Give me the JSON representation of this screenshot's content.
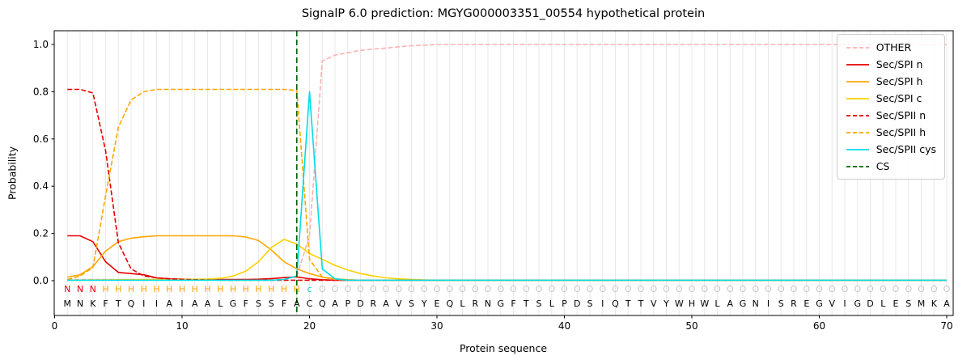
{
  "chart_data": {
    "type": "line",
    "title": "SignalP 6.0 prediction: MGYG000003351_00554 hypothetical protein",
    "xlabel": "Protein sequence",
    "ylabel": "Probability",
    "xlim": [
      0,
      70.5
    ],
    "ylim": [
      -0.15,
      1.06
    ],
    "xticks": [
      0,
      10,
      20,
      30,
      40,
      50,
      60,
      70
    ],
    "yticks": [
      0,
      0.2,
      0.4,
      0.6,
      0.8,
      1.0
    ],
    "grid": "vertical gridline at every residue position",
    "legend_position": "upper-right",
    "cs_position": 19,
    "x": [
      1,
      2,
      3,
      4,
      5,
      6,
      7,
      8,
      9,
      10,
      11,
      12,
      13,
      14,
      15,
      16,
      17,
      18,
      19,
      20,
      21,
      22,
      23,
      24,
      25,
      26,
      27,
      28,
      29,
      30,
      31,
      32,
      33,
      34,
      35,
      36,
      37,
      38,
      39,
      40,
      41,
      42,
      43,
      44,
      45,
      46,
      47,
      48,
      49,
      50,
      51,
      52,
      53,
      54,
      55,
      56,
      57,
      58,
      59,
      60,
      61,
      62,
      63,
      64,
      65,
      66,
      67,
      68,
      69,
      70
    ],
    "series": [
      {
        "name": "OTHER",
        "color": "#ffb1b1",
        "dash": true,
        "values": [
          0.005,
          0.005,
          0.005,
          0.005,
          0.005,
          0.005,
          0.005,
          0.005,
          0.005,
          0.005,
          0.005,
          0.005,
          0.005,
          0.005,
          0.005,
          0.005,
          0.005,
          0.005,
          0.02,
          0.19,
          0.93,
          0.955,
          0.965,
          0.975,
          0.98,
          0.985,
          0.99,
          0.995,
          0.997,
          1.0,
          1.0,
          1.0,
          1.0,
          1.0,
          1.0,
          1.0,
          1.0,
          1.0,
          1.0,
          1.0,
          1.0,
          1.0,
          1.0,
          1.0,
          1.0,
          1.0,
          1.0,
          1.0,
          1.0,
          1.0,
          1.0,
          1.0,
          1.0,
          1.0,
          1.0,
          1.0,
          1.0,
          1.0,
          1.0,
          1.0,
          1.0,
          1.0,
          1.0,
          1.0,
          1.0,
          1.0,
          1.0,
          1.0,
          1.0,
          1.0
        ]
      },
      {
        "name": "Sec/SPI n",
        "color": "#e50000",
        "dash": false,
        "values": [
          0.19,
          0.19,
          0.165,
          0.08,
          0.035,
          0.03,
          0.025,
          0.012,
          0.008,
          0.006,
          0.005,
          0.005,
          0.005,
          0.005,
          0.005,
          0.006,
          0.009,
          0.013,
          0.016,
          0.008,
          0.004,
          0.002,
          0.002,
          0.002,
          0.002,
          0.002,
          0.002,
          0.002,
          0.002,
          0.002,
          0.002,
          0.002,
          0.002,
          0.002,
          0.002,
          0.002,
          0.002,
          0.002,
          0.002,
          0.002,
          0.002,
          0.002,
          0.002,
          0.002,
          0.002,
          0.002,
          0.002,
          0.002,
          0.002,
          0.002,
          0.002,
          0.002,
          0.002,
          0.002,
          0.002,
          0.002,
          0.002,
          0.002,
          0.002,
          0.002,
          0.002,
          0.002,
          0.002,
          0.002,
          0.002,
          0.002,
          0.002,
          0.002,
          0.002,
          0.002
        ]
      },
      {
        "name": "Sec/SPI h",
        "color": "#ffa600",
        "dash": false,
        "values": [
          0.015,
          0.025,
          0.06,
          0.125,
          0.165,
          0.18,
          0.186,
          0.19,
          0.19,
          0.19,
          0.19,
          0.19,
          0.19,
          0.19,
          0.185,
          0.17,
          0.13,
          0.08,
          0.05,
          0.03,
          0.015,
          0.008,
          0.004,
          0.002,
          0.002,
          0.002,
          0.002,
          0.002,
          0.002,
          0.002,
          0.002,
          0.002,
          0.002,
          0.002,
          0.002,
          0.002,
          0.002,
          0.002,
          0.002,
          0.002,
          0.002,
          0.002,
          0.002,
          0.002,
          0.002,
          0.002,
          0.002,
          0.002,
          0.002,
          0.002,
          0.002,
          0.002,
          0.002,
          0.002,
          0.002,
          0.002,
          0.002,
          0.002,
          0.002,
          0.002,
          0.002,
          0.002,
          0.002,
          0.002,
          0.002,
          0.002,
          0.002,
          0.002,
          0.002,
          0.002
        ]
      },
      {
        "name": "Sec/SPI c",
        "color": "#ffd000",
        "dash": false,
        "values": [
          0.002,
          0.002,
          0.003,
          0.003,
          0.004,
          0.004,
          0.005,
          0.005,
          0.005,
          0.005,
          0.006,
          0.007,
          0.01,
          0.02,
          0.04,
          0.08,
          0.14,
          0.175,
          0.155,
          0.115,
          0.09,
          0.065,
          0.045,
          0.03,
          0.02,
          0.012,
          0.008,
          0.005,
          0.003,
          0.002,
          0.002,
          0.002,
          0.002,
          0.002,
          0.002,
          0.002,
          0.002,
          0.002,
          0.002,
          0.002,
          0.002,
          0.002,
          0.002,
          0.002,
          0.002,
          0.002,
          0.002,
          0.002,
          0.002,
          0.002,
          0.002,
          0.002,
          0.002,
          0.002,
          0.002,
          0.002,
          0.002,
          0.002,
          0.002,
          0.002,
          0.002,
          0.002,
          0.002,
          0.002,
          0.002,
          0.002,
          0.002,
          0.002,
          0.002,
          0.002
        ]
      },
      {
        "name": "Sec/SPII n",
        "color": "#e50000",
        "dash": true,
        "values": [
          0.81,
          0.81,
          0.795,
          0.55,
          0.16,
          0.05,
          0.02,
          0.012,
          0.008,
          0.005,
          0.004,
          0.003,
          0.002,
          0.002,
          0.002,
          0.002,
          0.002,
          0.002,
          0.002,
          0.002,
          0.002,
          0.002,
          0.002,
          0.002,
          0.002,
          0.002,
          0.002,
          0.002,
          0.002,
          0.002,
          0.002,
          0.002,
          0.002,
          0.002,
          0.002,
          0.002,
          0.002,
          0.002,
          0.002,
          0.002,
          0.002,
          0.002,
          0.002,
          0.002,
          0.002,
          0.002,
          0.002,
          0.002,
          0.002,
          0.002,
          0.002,
          0.002,
          0.002,
          0.002,
          0.002,
          0.002,
          0.002,
          0.002,
          0.002,
          0.002,
          0.002,
          0.002,
          0.002,
          0.002,
          0.002,
          0.002,
          0.002,
          0.002,
          0.002,
          0.002
        ]
      },
      {
        "name": "Sec/SPII h",
        "color": "#ffa600",
        "dash": true,
        "values": [
          0.005,
          0.02,
          0.055,
          0.36,
          0.65,
          0.765,
          0.8,
          0.81,
          0.81,
          0.81,
          0.81,
          0.81,
          0.81,
          0.81,
          0.81,
          0.81,
          0.81,
          0.81,
          0.805,
          0.09,
          0.015,
          0.005,
          0.002,
          0.002,
          0.002,
          0.002,
          0.002,
          0.002,
          0.002,
          0.002,
          0.002,
          0.002,
          0.002,
          0.002,
          0.002,
          0.002,
          0.002,
          0.002,
          0.002,
          0.002,
          0.002,
          0.002,
          0.002,
          0.002,
          0.002,
          0.002,
          0.002,
          0.002,
          0.002,
          0.002,
          0.002,
          0.002,
          0.002,
          0.002,
          0.002,
          0.002,
          0.002,
          0.002,
          0.002,
          0.002,
          0.002,
          0.002,
          0.002,
          0.002,
          0.002,
          0.002,
          0.002,
          0.002,
          0.002,
          0.002
        ]
      },
      {
        "name": "Sec/SPII cys",
        "color": "#00dde5",
        "dash": false,
        "values": [
          0.002,
          0.002,
          0.002,
          0.002,
          0.002,
          0.002,
          0.002,
          0.002,
          0.002,
          0.002,
          0.002,
          0.002,
          0.002,
          0.002,
          0.002,
          0.002,
          0.002,
          0.005,
          0.02,
          0.8,
          0.05,
          0.008,
          0.002,
          0.002,
          0.002,
          0.002,
          0.002,
          0.002,
          0.002,
          0.002,
          0.002,
          0.002,
          0.002,
          0.002,
          0.002,
          0.002,
          0.002,
          0.002,
          0.002,
          0.002,
          0.002,
          0.002,
          0.002,
          0.002,
          0.002,
          0.002,
          0.002,
          0.002,
          0.002,
          0.002,
          0.002,
          0.002,
          0.002,
          0.002,
          0.002,
          0.002,
          0.002,
          0.002,
          0.002,
          0.002,
          0.002,
          0.002,
          0.002,
          0.002,
          0.002,
          0.002,
          0.002,
          0.002,
          0.002,
          0.002
        ]
      },
      {
        "name": "CS",
        "color": "#006400",
        "dash": true,
        "type": "vline",
        "x": 19
      }
    ],
    "sequence": "MNKFTQIIAIAALGFSSFACQAPDRAVSYEQLRNGFTSLPDSIQTTVYWHWLAGNISREGVIGDLESMKA",
    "residue_labels": "NNNHHHHHHHHHHHHHHHHcOOOOOOOOOOOOOOOOOOOOOOOOOOOOOOOOOOOOOOOOOOOOOOOOOO",
    "label_colors": {
      "N": "#e50000",
      "H": "#ffa600",
      "c": "#00cdd7",
      "O": "#c8c8c8"
    }
  }
}
